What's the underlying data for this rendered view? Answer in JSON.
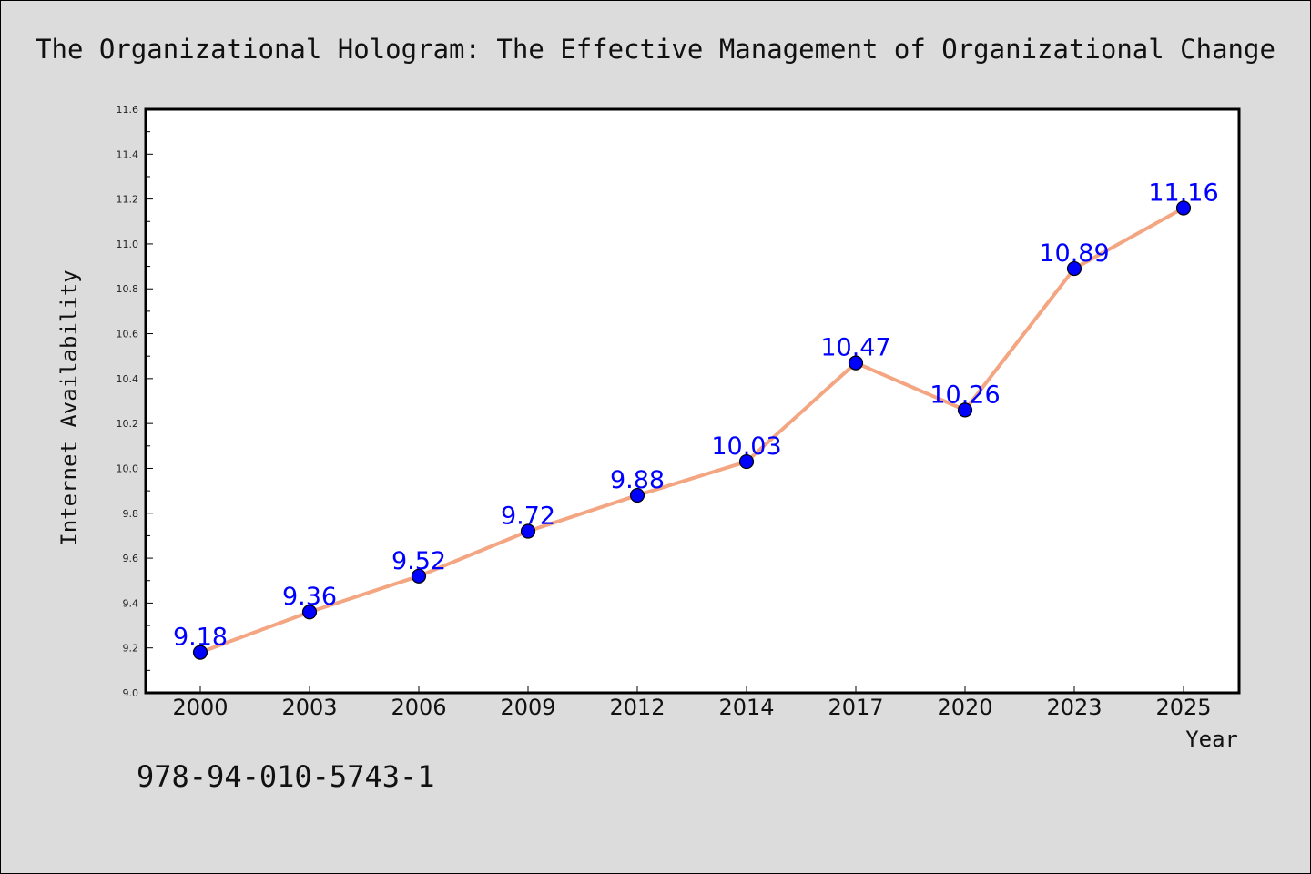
{
  "chart_data": {
    "type": "line",
    "title": "The Organizational Hologram: The Effective Management of Organizational Change",
    "xlabel": "Year",
    "ylabel": "Internet Availability",
    "categories": [
      "2000",
      "2003",
      "2006",
      "2009",
      "2012",
      "2014",
      "2017",
      "2020",
      "2023",
      "2025"
    ],
    "series": [
      {
        "values": [
          9.18,
          9.36,
          9.52,
          9.72,
          9.88,
          10.03,
          10.47,
          10.26,
          10.89,
          11.16
        ],
        "line_color": "#f4a582",
        "marker_color": "#0000ff",
        "label_color": "#0000ff"
      }
    ],
    "ylim": [
      9.0,
      11.6
    ],
    "y_ticks": [
      9.0,
      9.2,
      9.4,
      9.6,
      9.8,
      10.0,
      10.2,
      10.4,
      10.6,
      10.8,
      11.0,
      11.2,
      11.4,
      11.6
    ],
    "grid": false,
    "background_color": "#dcdcdc",
    "plot_background_color": "#ffffff"
  },
  "footer": {
    "isbn": "978-94-010-5743-1"
  }
}
